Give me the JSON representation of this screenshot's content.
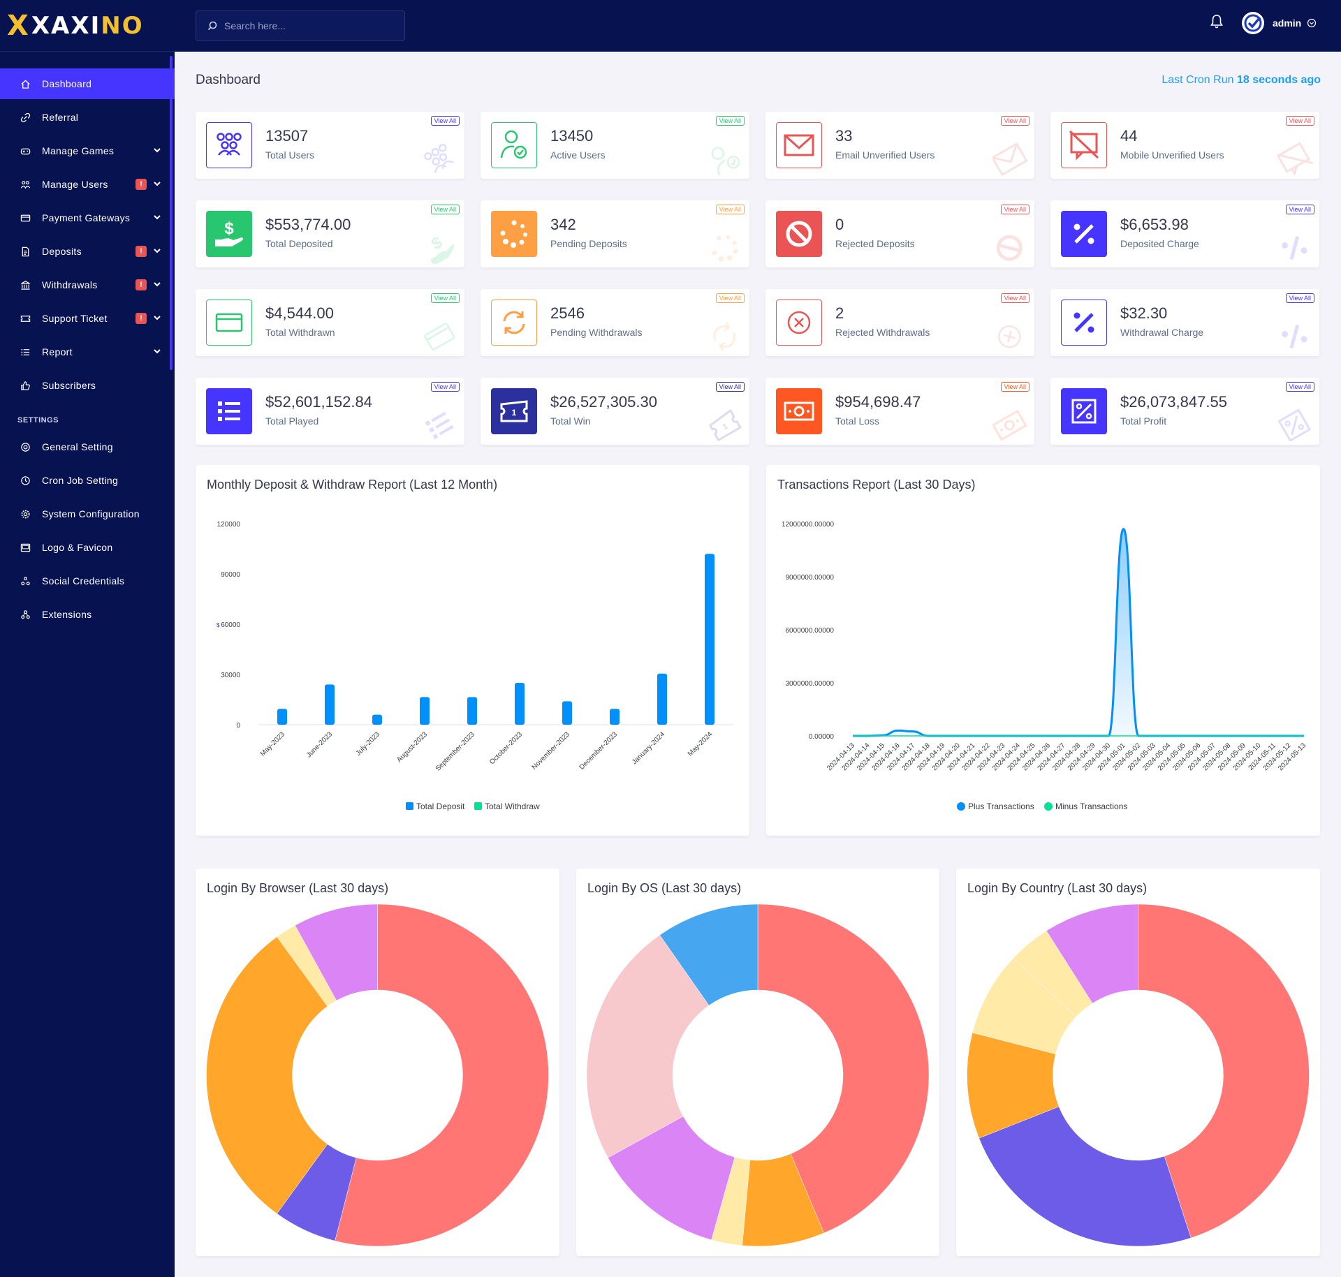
{
  "brand": {
    "logo_x": "X",
    "logo_main": "XAXI",
    "logo_accent": "NO"
  },
  "sidebar": {
    "items": [
      {
        "label": "Dashboard",
        "icon": "home-icon",
        "active": true,
        "badge": "",
        "caret": false
      },
      {
        "label": "Referral",
        "icon": "link-icon",
        "active": false,
        "badge": "",
        "caret": false
      },
      {
        "label": "Manage Games",
        "icon": "gamepad-icon",
        "active": false,
        "badge": "",
        "caret": true
      },
      {
        "label": "Manage Users",
        "icon": "users-icon",
        "active": false,
        "badge": "!",
        "caret": true
      },
      {
        "label": "Payment Gateways",
        "icon": "credit-card-icon",
        "active": false,
        "badge": "",
        "caret": true
      },
      {
        "label": "Deposits",
        "icon": "file-invoice-icon",
        "active": false,
        "badge": "!",
        "caret": true
      },
      {
        "label": "Withdrawals",
        "icon": "bank-icon",
        "active": false,
        "badge": "!",
        "caret": true
      },
      {
        "label": "Support Ticket",
        "icon": "ticket-icon",
        "active": false,
        "badge": "!",
        "caret": true
      },
      {
        "label": "Report",
        "icon": "list-icon",
        "active": false,
        "badge": "",
        "caret": true
      },
      {
        "label": "Subscribers",
        "icon": "thumbs-up-icon",
        "active": false,
        "badge": "",
        "caret": false
      }
    ],
    "settings_heading": "SETTINGS",
    "settings_items": [
      {
        "label": "General Setting",
        "icon": "life-ring-icon"
      },
      {
        "label": "Cron Job Setting",
        "icon": "clock-icon"
      },
      {
        "label": "System Configuration",
        "icon": "cog-icon"
      },
      {
        "label": "Logo & Favicon",
        "icon": "image-icon"
      },
      {
        "label": "Social Credentials",
        "icon": "users-cog-icon"
      },
      {
        "label": "Extensions",
        "icon": "puzzle-icon"
      }
    ]
  },
  "topbar": {
    "search_placeholder": "Search here...",
    "user_name": "admin"
  },
  "page": {
    "title": "Dashboard",
    "cron_prefix": "Last Cron Run",
    "cron_value": "18 seconds ago"
  },
  "widgets": [
    {
      "value": "13507",
      "label": "Total Users",
      "view": "View All",
      "color": "#4634ff",
      "style": "outline",
      "icon": "users-icon"
    },
    {
      "value": "13450",
      "label": "Active Users",
      "view": "View All",
      "color": "#28c76f",
      "style": "outline",
      "icon": "user-check-icon"
    },
    {
      "value": "33",
      "label": "Email Unverified Users",
      "view": "View All",
      "color": "#ea5455",
      "style": "outline",
      "icon": "envelope-icon"
    },
    {
      "value": "44",
      "label": "Mobile Unverified Users",
      "view": "View All",
      "color": "#ea5455",
      "style": "outline",
      "icon": "comment-slash-icon"
    },
    {
      "value": "$553,774.00",
      "label": "Total Deposited",
      "view": "View All",
      "color": "#28c76f",
      "style": "solid",
      "icon": "hand-dollar-icon"
    },
    {
      "value": "342",
      "label": "Pending Deposits",
      "view": "View All",
      "color": "#ff9f43",
      "style": "solid",
      "icon": "spinner-icon"
    },
    {
      "value": "0",
      "label": "Rejected Deposits",
      "view": "View All",
      "color": "#ea5455",
      "style": "solid",
      "icon": "ban-icon"
    },
    {
      "value": "$6,653.98",
      "label": "Deposited Charge",
      "view": "View All",
      "color": "#4634ff",
      "style": "solid",
      "icon": "percent-icon"
    },
    {
      "value": "$4,544.00",
      "label": "Total Withdrawn",
      "view": "View All",
      "color": "#28c76f",
      "style": "outline",
      "icon": "wallet-icon"
    },
    {
      "value": "2546",
      "label": "Pending Withdrawals",
      "view": "View All",
      "color": "#ff9f43",
      "style": "outline",
      "icon": "sync-icon"
    },
    {
      "value": "2",
      "label": "Rejected Withdrawals",
      "view": "View All",
      "color": "#ea5455",
      "style": "outline",
      "icon": "times-circle-icon"
    },
    {
      "value": "$32.30",
      "label": "Withdrawal Charge",
      "view": "View All",
      "color": "#4634ff",
      "style": "outline",
      "icon": "percent-icon"
    },
    {
      "value": "$52,601,152.84",
      "label": "Total Played",
      "view": "View All",
      "color": "#4634ff",
      "style": "solid",
      "icon": "list-icon"
    },
    {
      "value": "$26,527,305.30",
      "label": "Total Win",
      "view": "View All",
      "color": "#2c2f9e",
      "style": "solid",
      "icon": "ticket-icon"
    },
    {
      "value": "$954,698.47",
      "label": "Total Loss",
      "view": "View All",
      "color": "#ff5722",
      "style": "solid",
      "icon": "money-icon"
    },
    {
      "value": "$26,073,847.55",
      "label": "Total Profit",
      "view": "View All",
      "color": "#4634ff",
      "style": "solid",
      "icon": "percent-box-icon"
    }
  ],
  "chart_data": [
    {
      "type": "bar",
      "title": "Monthly Deposit & Withdraw Report (Last 12 Month)",
      "categories": [
        "May-2023",
        "June-2023",
        "July-2023",
        "August-2023",
        "September-2023",
        "October-2023",
        "November-2023",
        "December-2023",
        "January-2024",
        "May-2024"
      ],
      "series": [
        {
          "name": "Total Deposit",
          "color": "#008ffb",
          "values": [
            9500,
            24000,
            6000,
            16500,
            16500,
            25000,
            14000,
            9500,
            30500,
            102000
          ]
        },
        {
          "name": "Total Withdraw",
          "color": "#00e396",
          "values": [
            0,
            0,
            0,
            0,
            0,
            0,
            0,
            0,
            0,
            0
          ]
        }
      ],
      "yticks": [
        "0",
        "30000",
        "60000",
        "90000",
        "120000"
      ],
      "ylim": [
        0,
        120000
      ],
      "ylabel_symbol": "$",
      "legend": "bottom"
    },
    {
      "type": "area",
      "title": "Transactions Report (Last 30 Days)",
      "x": [
        "2024-04-13",
        "2024-04-14",
        "2024-04-15",
        "2024-04-16",
        "2024-04-17",
        "2024-04-18",
        "2024-04-19",
        "2024-04-20",
        "2024-04-21",
        "2024-04-22",
        "2024-04-23",
        "2024-04-24",
        "2024-04-25",
        "2024-04-26",
        "2024-04-27",
        "2024-04-28",
        "2024-04-29",
        "2024-04-30",
        "2024-05-01",
        "2024-05-02",
        "2024-05-03",
        "2024-05-04",
        "2024-05-05",
        "2024-05-06",
        "2024-05-07",
        "2024-05-08",
        "2024-05-09",
        "2024-05-10",
        "2024-05-11",
        "2024-05-12",
        "2024-05-13"
      ],
      "series": [
        {
          "name": "Plus Transactions",
          "color": "#008ffb",
          "values": [
            0,
            0,
            30000,
            300000,
            250000,
            0,
            0,
            0,
            0,
            0,
            0,
            0,
            0,
            0,
            0,
            0,
            0,
            0,
            11700000,
            0,
            0,
            0,
            0,
            0,
            0,
            0,
            0,
            0,
            0,
            0,
            0
          ]
        },
        {
          "name": "Minus Transactions",
          "color": "#00e396",
          "values": [
            0,
            0,
            0,
            0,
            0,
            0,
            0,
            0,
            0,
            0,
            0,
            0,
            0,
            0,
            0,
            0,
            0,
            0,
            0,
            0,
            0,
            0,
            0,
            0,
            0,
            0,
            0,
            0,
            0,
            0,
            0
          ]
        }
      ],
      "yticks": [
        "0.00000",
        "3000000.00000",
        "6000000.00000",
        "9000000.00000",
        "12000000.00000"
      ],
      "ylim": [
        0,
        12000000
      ],
      "legend": "bottom"
    },
    {
      "type": "pie",
      "title": "Login By Browser (Last 30 days)",
      "values": [
        54,
        6,
        30,
        2,
        8
      ],
      "colors": [
        "#ff7675",
        "#6c5ce7",
        "#ffa62b",
        "#ffeaa7",
        "#da84f5"
      ]
    },
    {
      "type": "pie",
      "title": "Login By OS (Last 30 days)",
      "values": [
        45,
        8,
        3,
        13,
        24,
        10
      ],
      "colors": [
        "#ff7675",
        "#ffa62b",
        "#ffeaa7",
        "#da84f5",
        "#f8c9cc",
        "#46a7f0"
      ]
    },
    {
      "type": "pie",
      "title": "Login By Country (Last 30 days)",
      "values": [
        45,
        24,
        10,
        8,
        4,
        9
      ],
      "colors": [
        "#ff7675",
        "#6c5ce7",
        "#ffa62b",
        "#ffeaa7",
        "#ffeaa7",
        "#da84f5"
      ]
    }
  ]
}
